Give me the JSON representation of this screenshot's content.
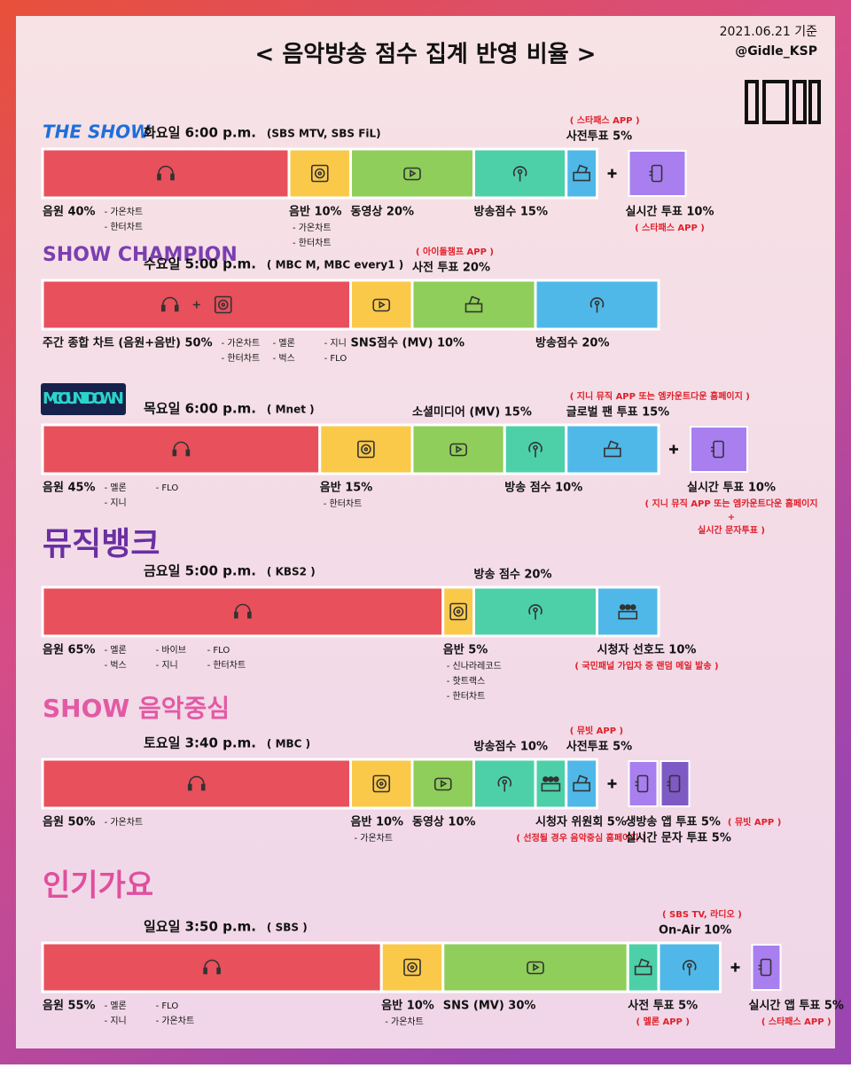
{
  "header": {
    "title": "< 음악방송 점수 집계 반영 비율 >",
    "date": "2021.06.21 기준",
    "account": "@Gidle_KSP"
  },
  "shows": [
    {
      "logo": "THE SHOW",
      "day": "화요일 6:00 p.m.",
      "channel": "(SBS MTV, SBS FiL)",
      "segments": [
        {
          "label": "음원 40%",
          "share": 40,
          "color": "#e8505b",
          "icon": "headphones",
          "notes": [
            "- 가온차트",
            "- 한터차트"
          ]
        },
        {
          "label": "음반 10%",
          "share": 10,
          "color": "#fbc94a",
          "icon": "disc",
          "notes": [
            "- 가온차트",
            "- 한터차트"
          ]
        },
        {
          "label": "동영상 20%",
          "share": 20,
          "color": "#8fce5a",
          "icon": "play"
        },
        {
          "label": "방송점수 15%",
          "share": 15,
          "color": "#4dd0a8",
          "icon": "antenna"
        },
        {
          "label": "사전투표 5%",
          "share": 5,
          "color": "#4fb8e8",
          "icon": "ballot",
          "above": true,
          "red": "( 스타패스 APP )"
        }
      ],
      "extras": [
        {
          "label": "실시간 투표 10%",
          "share": 10,
          "color": "#a97ff0",
          "icon": "phone",
          "red": "( 스타패스 APP )"
        }
      ]
    },
    {
      "logo": "SHOW CHAMPION",
      "day": "수요일 5:00 p.m.",
      "channel": "( MBC M, MBC every1 )",
      "segments": [
        {
          "label": "주간 종합 차트 (음원+음반) 50%",
          "share": 50,
          "color": "#e8505b",
          "icon": "headphones+disc",
          "notes": [
            "- 가온차트",
            "- 한터차트",
            "- 멜론",
            "- 벅스",
            "- 지니",
            "- FLO"
          ]
        },
        {
          "label": "SNS점수 (MV) 10%",
          "share": 10,
          "color": "#fbc94a",
          "icon": "play"
        },
        {
          "label": "사전 투표 20%",
          "share": 20,
          "color": "#8fce5a",
          "icon": "ballot",
          "above": true,
          "red": "( 아이돌챔프 APP )"
        },
        {
          "label": "방송점수 20%",
          "share": 20,
          "color": "#4fb8e8",
          "icon": "antenna"
        }
      ],
      "extras": []
    },
    {
      "logo": "M COUNTDOWN",
      "day": "목요일 6:00 p.m.",
      "channel": "( Mnet )",
      "segments": [
        {
          "label": "음원 45%",
          "share": 45,
          "color": "#e8505b",
          "icon": "headphones",
          "notes": [
            "- 멜론",
            "- 지니",
            "- FLO"
          ]
        },
        {
          "label": "음반 15%",
          "share": 15,
          "color": "#fbc94a",
          "icon": "disc",
          "notes": [
            "- 한터차트"
          ]
        },
        {
          "label": "소셜미디어 (MV) 15%",
          "share": 15,
          "color": "#8fce5a",
          "icon": "play",
          "above": true
        },
        {
          "label": "방송 점수 10%",
          "share": 10,
          "color": "#4dd0a8",
          "icon": "antenna"
        },
        {
          "label": "글로벌 팬 투표 15%",
          "share": 15,
          "color": "#4fb8e8",
          "icon": "ballot",
          "above": true,
          "red": "( 지니 뮤직 APP 또는 엠카운트다운 홈페이지 )"
        }
      ],
      "extras": [
        {
          "label": "실시간 투표 10%",
          "share": 10,
          "color": "#a97ff0",
          "icon": "phone",
          "red": [
            "( 지니 뮤직 APP 또는 엠카운트다운 홈페이지",
            "+",
            "실시간 문자투표 )"
          ]
        }
      ]
    },
    {
      "logo": "뮤직뱅크",
      "day": "금요일 5:00 p.m.",
      "channel": "( KBS2 )",
      "segments": [
        {
          "label": "음원 65%",
          "share": 65,
          "color": "#e8505b",
          "icon": "headphones",
          "notes": [
            "- 멜론",
            "- 벅스",
            "- 바이브",
            "- 지니",
            "- FLO",
            "- 한터차트"
          ]
        },
        {
          "label": "음반 5%",
          "share": 5,
          "color": "#fbc94a",
          "icon": "disc",
          "notes": [
            "- 신나라레코드",
            "- 핫트랙스",
            "- 한터차트"
          ]
        },
        {
          "label": "방송 점수 20%",
          "share": 20,
          "color": "#4dd0a8",
          "icon": "antenna",
          "above": true
        },
        {
          "label": "시청자 선호도 10%",
          "share": 10,
          "color": "#4fb8e8",
          "icon": "people",
          "red": "( 국민패널 가입자 중 랜덤 메일 발송 )"
        }
      ],
      "extras": []
    },
    {
      "logo": "SHOW 음악중심",
      "day": "토요일 3:40 p.m.",
      "channel": "( MBC )",
      "segments": [
        {
          "label": "음원 50%",
          "share": 50,
          "color": "#e8505b",
          "icon": "headphones",
          "notes": [
            "- 가온차트"
          ]
        },
        {
          "label": "음반 10%",
          "share": 10,
          "color": "#fbc94a",
          "icon": "disc",
          "notes": [
            "- 가온차트"
          ]
        },
        {
          "label": "동영상 10%",
          "share": 10,
          "color": "#8fce5a",
          "icon": "play"
        },
        {
          "label": "방송점수 10%",
          "share": 10,
          "color": "#4dd0a8",
          "icon": "antenna",
          "above": true
        },
        {
          "label": "시청자 위원회 5%",
          "share": 5,
          "color": "#4dd0a8",
          "icon": "people",
          "red": "( 선정될 경우 음악중심 홈페이지 )"
        },
        {
          "label": "사전투표 5%",
          "share": 5,
          "color": "#4fb8e8",
          "icon": "ballot",
          "above": true,
          "red": "( 뮤빗 APP )"
        }
      ],
      "extras": [
        {
          "label": "생방송 앱 투표 5%",
          "share": 5,
          "color": "#a97ff0",
          "icon": "phone",
          "red": "( 뮤빗 APP )"
        },
        {
          "label": "실시간 문자 투표 5%",
          "share": 5,
          "color": "#7e5ac4",
          "icon": "phone"
        }
      ]
    },
    {
      "logo": "인기가요",
      "day": "일요일 3:50 p.m.",
      "channel": "( SBS )",
      "segments": [
        {
          "label": "음원 55%",
          "share": 55,
          "color": "#e8505b",
          "icon": "headphones",
          "notes": [
            "- 멜론",
            "- 지니",
            "- FLO",
            "- 가온차트"
          ]
        },
        {
          "label": "음반 10%",
          "share": 10,
          "color": "#fbc94a",
          "icon": "disc",
          "notes": [
            "- 가온차트"
          ]
        },
        {
          "label": "SNS (MV) 30%",
          "share": 30,
          "color": "#8fce5a",
          "icon": "play"
        },
        {
          "label": "사전 투표 5%",
          "share": 5,
          "color": "#4dd0a8",
          "icon": "ballot",
          "red": "( 멜론 APP )"
        },
        {
          "label": "On-Air 10%",
          "share": 10,
          "color": "#4fb8e8",
          "icon": "antenna",
          "above": true,
          "red": "( SBS TV, 라디오 )"
        }
      ],
      "extras": [
        {
          "label": "실시간 앱 투표 5%",
          "share": 5,
          "color": "#a97ff0",
          "icon": "phone",
          "red": "( 스타패스 APP )"
        }
      ]
    }
  ]
}
